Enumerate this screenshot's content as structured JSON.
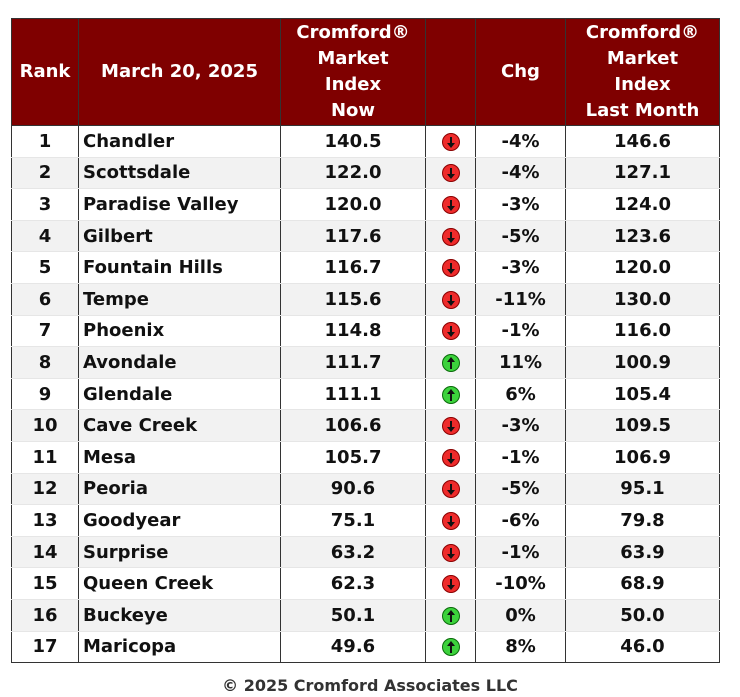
{
  "header": {
    "rank": "Rank",
    "date": "March 20, 2025",
    "now": [
      "Cromford®",
      "Market",
      "Index",
      "Now"
    ],
    "chg": "Chg",
    "last": [
      "Cromford®",
      "Market",
      "Index",
      "Last Month"
    ]
  },
  "rows": [
    {
      "rank": "1",
      "city": "Chandler",
      "now": "140.5",
      "trend": "down",
      "chg": "-4%",
      "last": "146.6"
    },
    {
      "rank": "2",
      "city": "Scottsdale",
      "now": "122.0",
      "trend": "down",
      "chg": "-4%",
      "last": "127.1"
    },
    {
      "rank": "3",
      "city": "Paradise Valley",
      "now": "120.0",
      "trend": "down",
      "chg": "-3%",
      "last": "124.0"
    },
    {
      "rank": "4",
      "city": "Gilbert",
      "now": "117.6",
      "trend": "down",
      "chg": "-5%",
      "last": "123.6"
    },
    {
      "rank": "5",
      "city": "Fountain Hills",
      "now": "116.7",
      "trend": "down",
      "chg": "-3%",
      "last": "120.0"
    },
    {
      "rank": "6",
      "city": "Tempe",
      "now": "115.6",
      "trend": "down",
      "chg": "-11%",
      "last": "130.0"
    },
    {
      "rank": "7",
      "city": "Phoenix",
      "now": "114.8",
      "trend": "down",
      "chg": "-1%",
      "last": "116.0"
    },
    {
      "rank": "8",
      "city": "Avondale",
      "now": "111.7",
      "trend": "up",
      "chg": "11%",
      "last": "100.9"
    },
    {
      "rank": "9",
      "city": "Glendale",
      "now": "111.1",
      "trend": "up",
      "chg": "6%",
      "last": "105.4"
    },
    {
      "rank": "10",
      "city": "Cave Creek",
      "now": "106.6",
      "trend": "down",
      "chg": "-3%",
      "last": "109.5"
    },
    {
      "rank": "11",
      "city": "Mesa",
      "now": "105.7",
      "trend": "down",
      "chg": "-1%",
      "last": "106.9"
    },
    {
      "rank": "12",
      "city": "Peoria",
      "now": "90.6",
      "trend": "down",
      "chg": "-5%",
      "last": "95.1"
    },
    {
      "rank": "13",
      "city": "Goodyear",
      "now": "75.1",
      "trend": "down",
      "chg": "-6%",
      "last": "79.8"
    },
    {
      "rank": "14",
      "city": "Surprise",
      "now": "63.2",
      "trend": "down",
      "chg": "-1%",
      "last": "63.9"
    },
    {
      "rank": "15",
      "city": "Queen Creek",
      "now": "62.3",
      "trend": "down",
      "chg": "-10%",
      "last": "68.9"
    },
    {
      "rank": "16",
      "city": "Buckeye",
      "now": "50.1",
      "trend": "up",
      "chg": "0%",
      "last": "50.0"
    },
    {
      "rank": "17",
      "city": "Maricopa",
      "now": "49.6",
      "trend": "up",
      "chg": "8%",
      "last": "46.0"
    }
  ],
  "icons": {
    "down": "down-arrow-icon",
    "up": "up-arrow-icon"
  },
  "colors": {
    "header_bg": "#7f0000",
    "down": "#ee2b2b",
    "up": "#3cd23c"
  },
  "footer": "© 2025 Cromford Associates LLC"
}
